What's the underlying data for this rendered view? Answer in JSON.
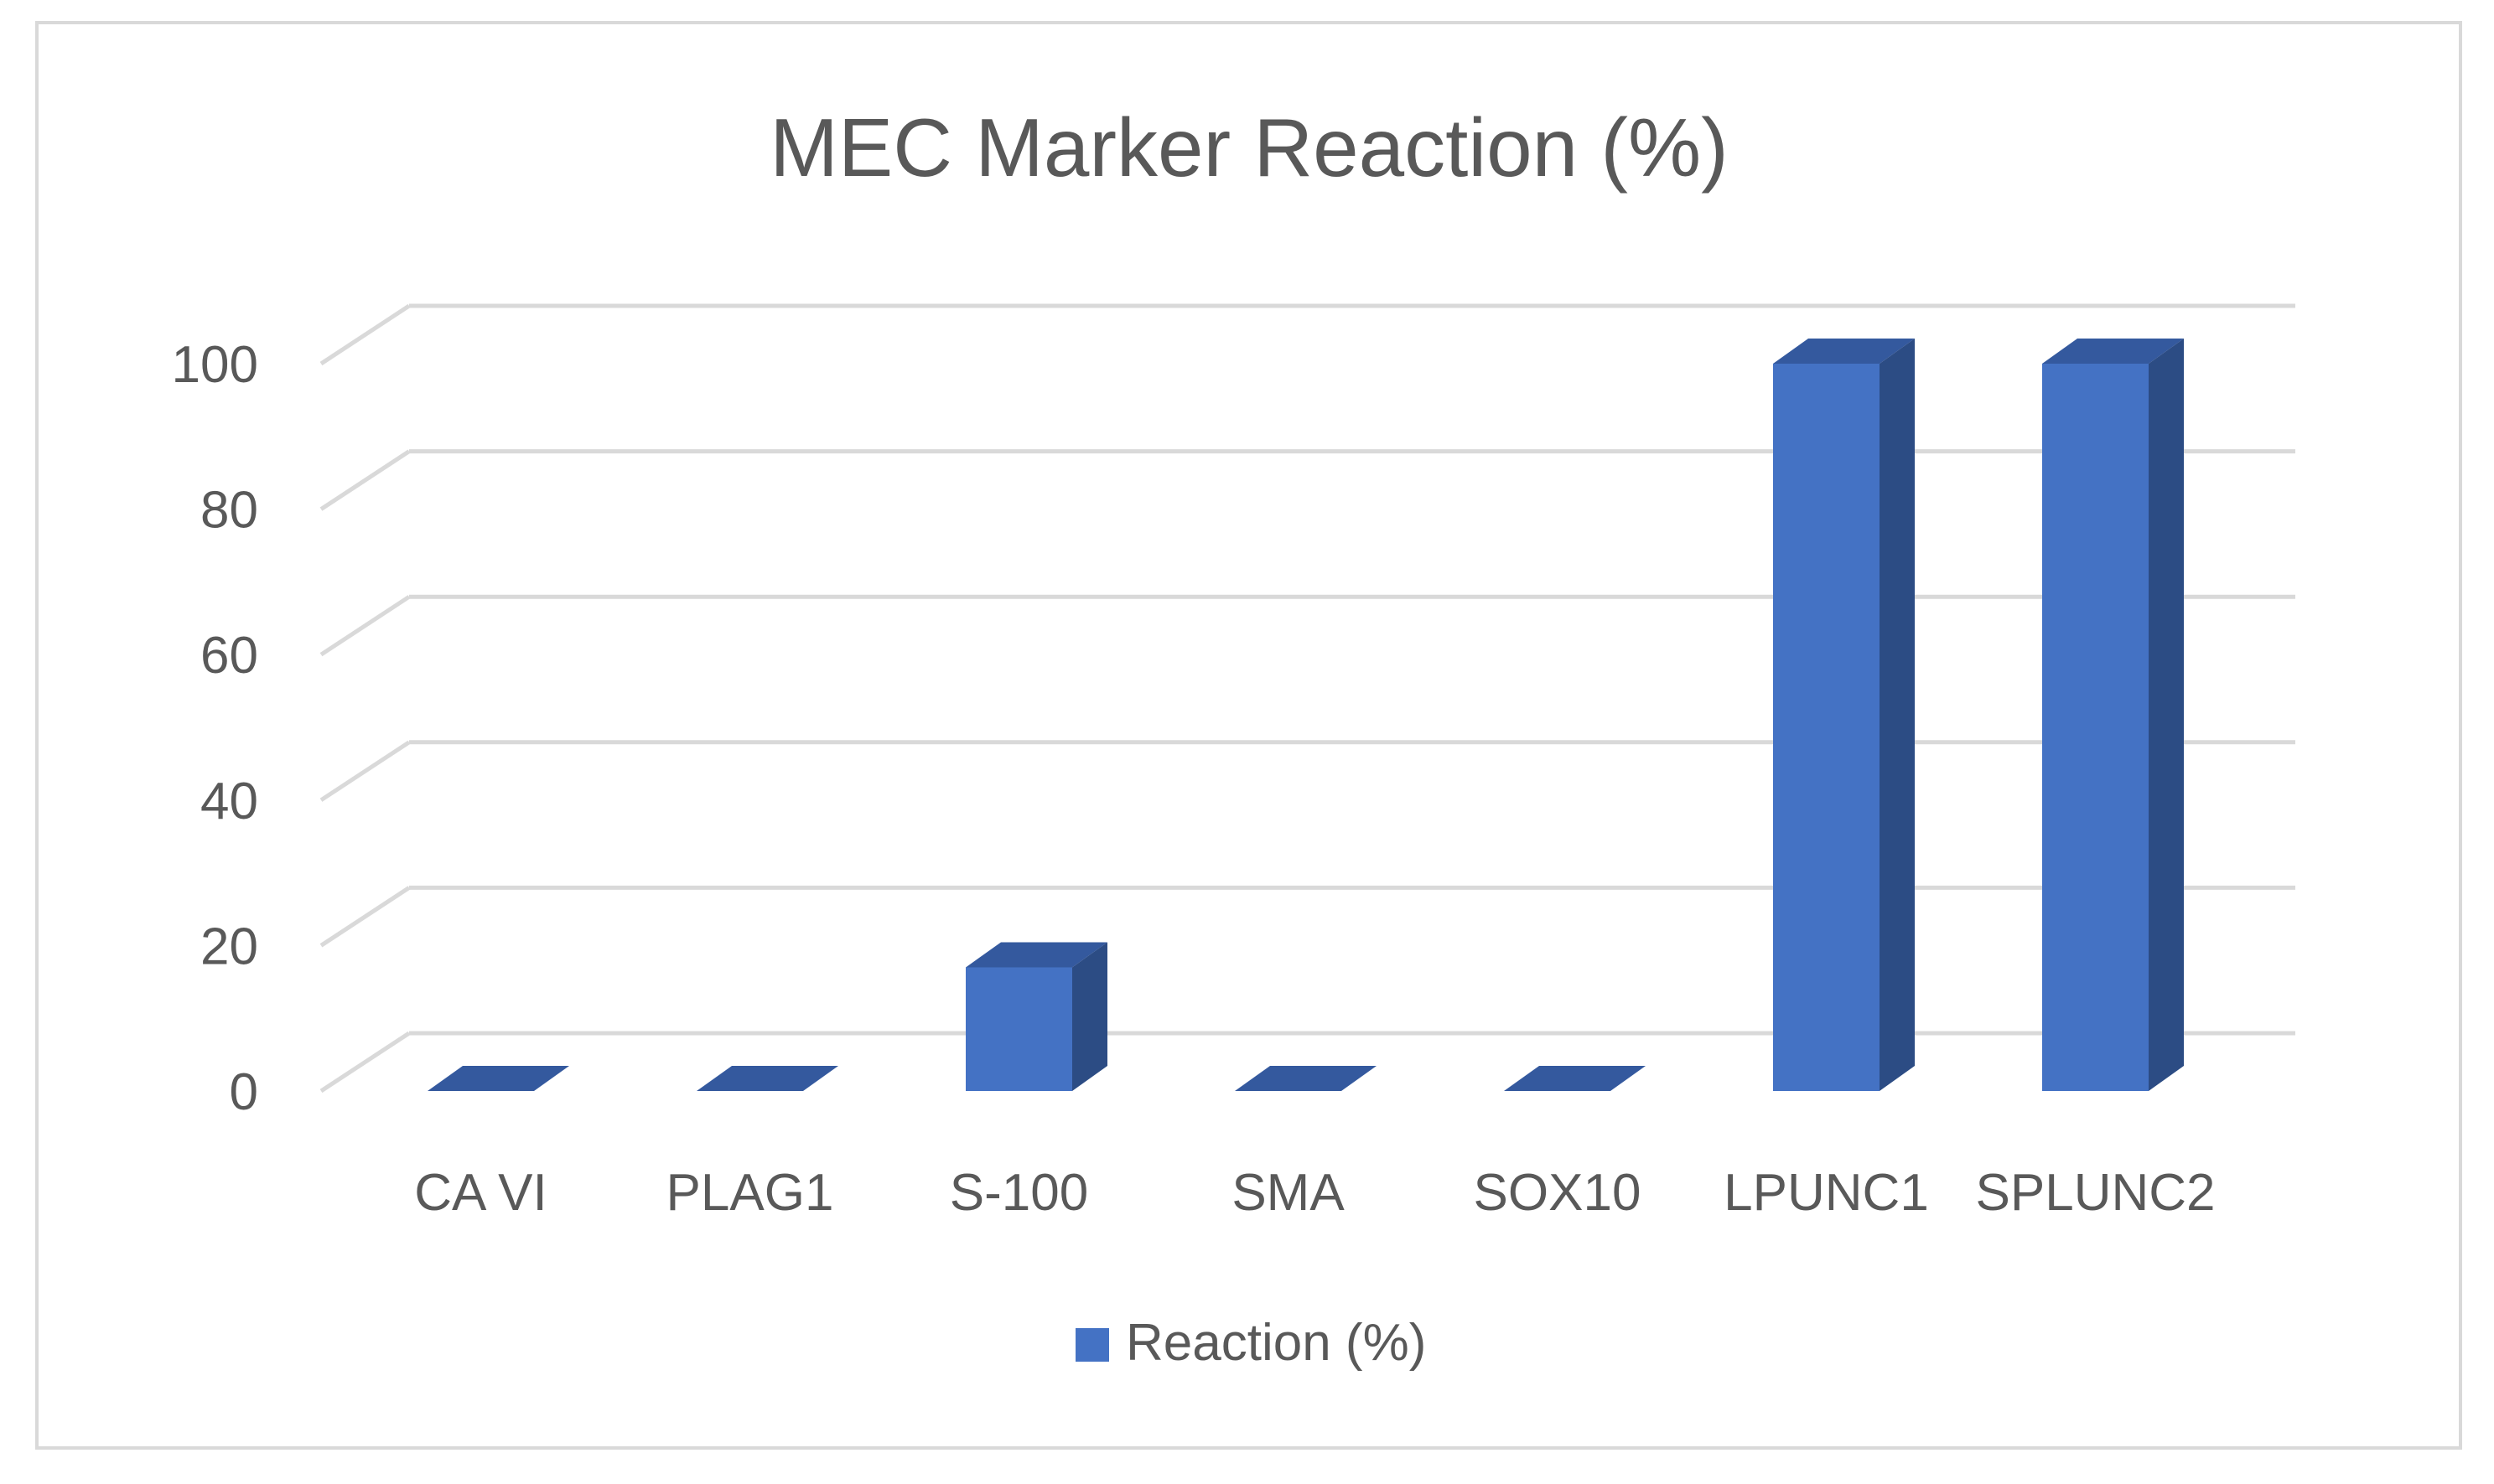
{
  "chart_data": {
    "type": "bar",
    "title": "MEC Marker Reaction (%)",
    "xlabel": "",
    "ylabel": "",
    "categories": [
      "CA VI",
      "PLAG1",
      "S-100",
      "SMA",
      "SOX10",
      "LPUNC1",
      "SPLUNC2"
    ],
    "series": [
      {
        "name": "Reaction (%)",
        "values": [
          0,
          0,
          17,
          0,
          0,
          100,
          100
        ]
      }
    ],
    "ylim": [
      0,
      100
    ],
    "yticks": [
      0,
      20,
      40,
      60,
      80,
      100
    ],
    "grid": true,
    "three_d": true,
    "legend": "bottom",
    "colors": {
      "bar_front": "#4472c4",
      "bar_side": "#2c4c84",
      "bar_top": "#34599e",
      "grid": "#d9d9d9",
      "text": "#595959",
      "border": "#d9d9d9"
    }
  }
}
